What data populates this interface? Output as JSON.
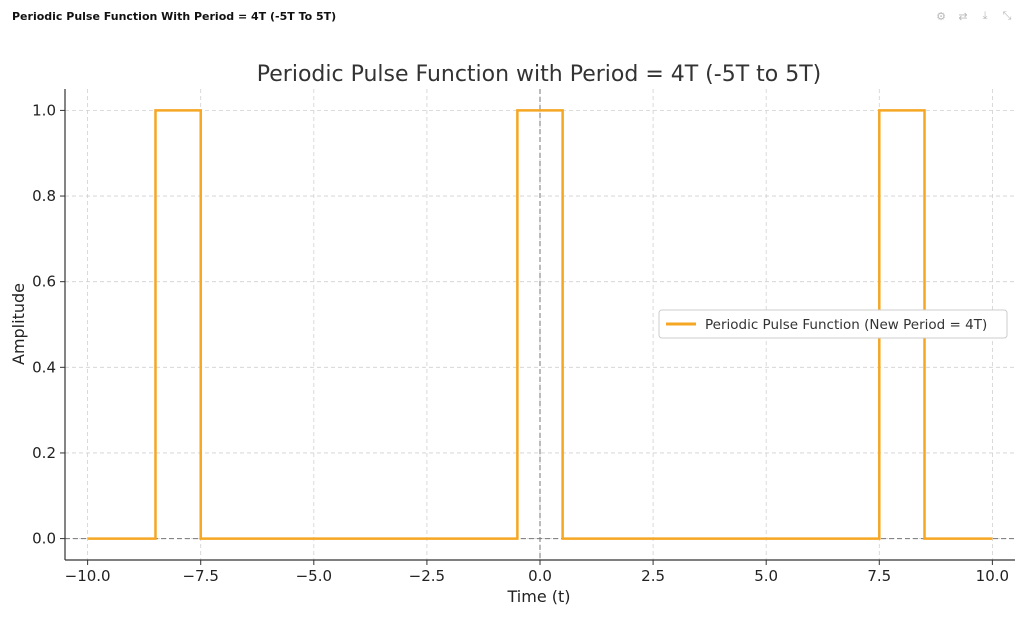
{
  "header": {
    "title": "Periodic Pulse Function With Period = 4T (-5T To 5T)",
    "tools": [
      {
        "icon": "chart-settings-icon",
        "glyph": "⚙"
      },
      {
        "icon": "toggle-icon",
        "glyph": "⇄"
      },
      {
        "icon": "download-icon",
        "glyph": "⤓"
      },
      {
        "icon": "collapse-icon",
        "glyph": "⤡"
      }
    ]
  },
  "colors": {
    "series": "#f5a623",
    "grid": "#d0d0d0",
    "axis": "#333333",
    "zero_line": "#777777"
  },
  "chart_data": {
    "type": "line",
    "title": "Periodic Pulse Function with Period = 4T (-5T to 5T)",
    "xlabel": "Time (t)",
    "ylabel": "Amplitude",
    "xlim": [
      -10.5,
      10.5
    ],
    "ylim": [
      -0.05,
      1.05
    ],
    "xticks": [
      -10,
      -7.5,
      -5,
      -2.5,
      0,
      2.5,
      5,
      7.5,
      10
    ],
    "xtick_labels": [
      "−10.0",
      "−7.5",
      "−5.0",
      "−2.5",
      "0.0",
      "2.5",
      "5.0",
      "7.5",
      "10.0"
    ],
    "yticks": [
      0,
      0.2,
      0.4,
      0.6,
      0.8,
      1.0
    ],
    "ytick_labels": [
      "0.0",
      "0.2",
      "0.4",
      "0.6",
      "0.8",
      "1.0"
    ],
    "grid": true,
    "legend_position": "center-right",
    "series": [
      {
        "name": "Periodic Pulse Function (New Period = 4T)",
        "x": [
          -10,
          -8.5,
          -8.5,
          -7.5,
          -7.5,
          -0.5,
          -0.5,
          0.5,
          0.5,
          7.5,
          7.5,
          8.5,
          8.5,
          10
        ],
        "y": [
          0,
          0,
          1,
          1,
          0,
          0,
          1,
          1,
          0,
          0,
          1,
          1,
          0,
          0
        ]
      }
    ]
  }
}
